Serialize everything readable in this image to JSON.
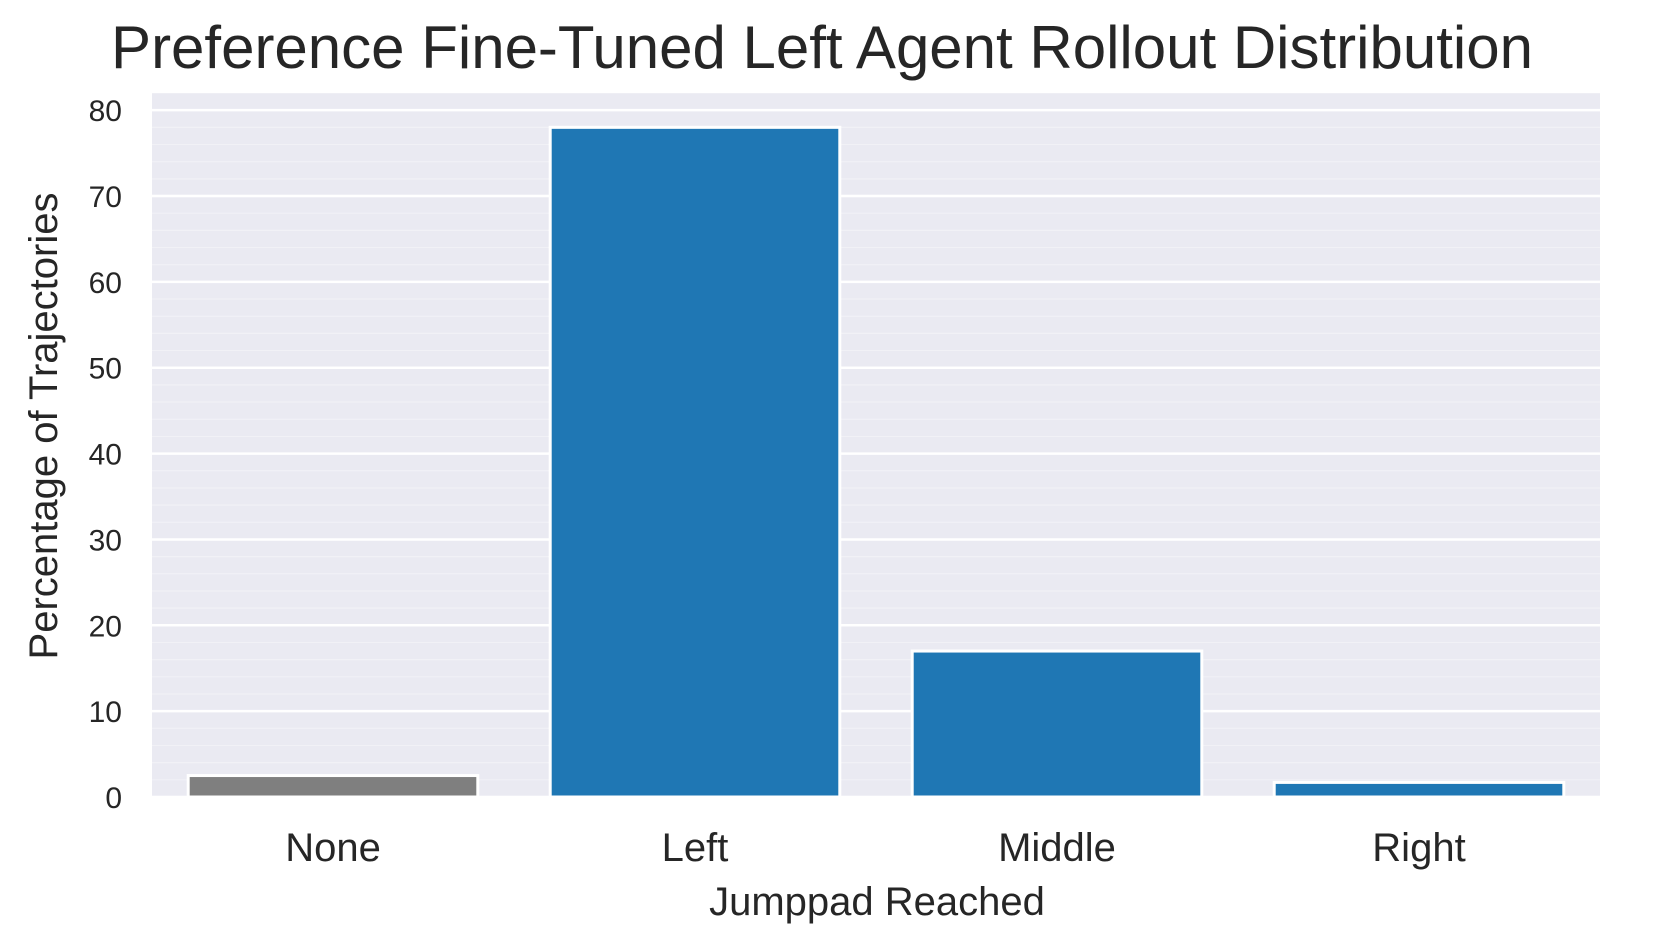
{
  "chart_data": {
    "type": "bar",
    "title": "Preference Fine-Tuned Left Agent Rollout Distribution",
    "xlabel": "Jumppad Reached",
    "ylabel": "Percentage of Trajectories",
    "categories": [
      "None",
      "Left",
      "Middle",
      "Right"
    ],
    "values": [
      2.5,
      78,
      17,
      1.7
    ],
    "colors": [
      "#7f7f7f",
      "#1f77b4",
      "#1f77b4",
      "#1f77b4"
    ],
    "ylim": [
      0,
      82
    ],
    "yticks": [
      0,
      10,
      20,
      30,
      40,
      50,
      60,
      70,
      80
    ],
    "minor_grid_step": 2,
    "grid": true,
    "background": "#eaeaf2",
    "grid_color": "#ffffff"
  }
}
